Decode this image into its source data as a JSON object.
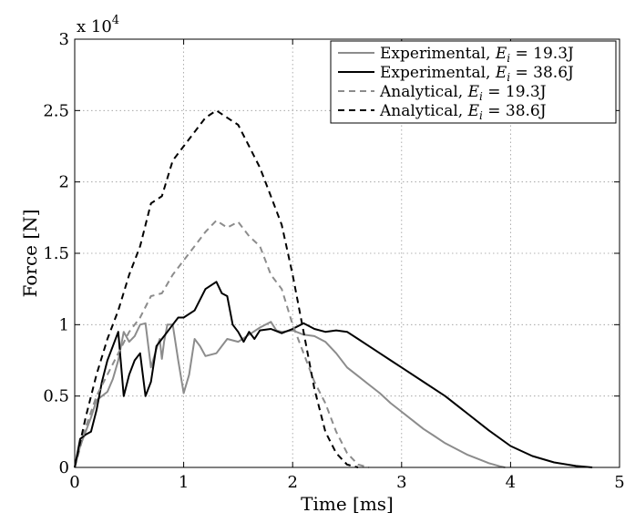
{
  "chart_data": {
    "type": "line",
    "xlabel": "Time [ms]",
    "ylabel": "Force [N]",
    "multiplier_label": "x 10",
    "multiplier_exponent": "4",
    "xlim": [
      0,
      5
    ],
    "ylim": [
      0,
      30000
    ],
    "xticks": [
      0,
      1,
      2,
      3,
      4,
      5
    ],
    "xtick_labels": [
      "0",
      "1",
      "2",
      "3",
      "4",
      "5"
    ],
    "yticks": [
      0,
      5000,
      10000,
      15000,
      20000,
      25000,
      30000
    ],
    "ytick_labels": [
      "0",
      "0.5",
      "1",
      "1.5",
      "2",
      "2.5",
      "3"
    ],
    "grid": true,
    "legend_position": "top-right",
    "series": [
      {
        "name": "Experimental, E_i = 19.3J",
        "legend_prefix": "Experimental, ",
        "legend_suffix": "19.3J",
        "color": "#8c8c8c",
        "dash": "solid",
        "x": [
          0,
          0.05,
          0.1,
          0.15,
          0.2,
          0.25,
          0.3,
          0.35,
          0.4,
          0.45,
          0.5,
          0.55,
          0.6,
          0.65,
          0.7,
          0.75,
          0.78,
          0.8,
          0.82,
          0.85,
          0.9,
          0.95,
          1.0,
          1.05,
          1.1,
          1.15,
          1.2,
          1.3,
          1.4,
          1.5,
          1.6,
          1.7,
          1.8,
          1.85,
          1.9,
          2.0,
          2.1,
          2.2,
          2.3,
          2.4,
          2.5,
          2.6,
          2.7,
          2.8,
          2.9,
          3.0,
          3.1,
          3.2,
          3.3,
          3.4,
          3.5,
          3.6,
          3.7,
          3.8,
          3.9,
          3.95
        ],
        "values": [
          0,
          1500,
          2500,
          3500,
          4700,
          5000,
          5300,
          6200,
          7500,
          9500,
          8800,
          9200,
          10000,
          10100,
          7000,
          8300,
          9000,
          7600,
          8800,
          10000,
          10000,
          7500,
          5200,
          6500,
          9000,
          8500,
          7800,
          8000,
          9000,
          8800,
          9300,
          9800,
          10200,
          9600,
          9500,
          9600,
          9300,
          9200,
          8800,
          8000,
          7000,
          6400,
          5800,
          5200,
          4500,
          3900,
          3300,
          2700,
          2200,
          1700,
          1300,
          900,
          600,
          300,
          80,
          0
        ]
      },
      {
        "name": "Experimental, E_i = 38.6J",
        "legend_prefix": "Experimental, ",
        "legend_suffix": "38.6J",
        "color": "#000000",
        "dash": "solid",
        "x": [
          0,
          0.05,
          0.1,
          0.15,
          0.2,
          0.25,
          0.3,
          0.35,
          0.4,
          0.45,
          0.5,
          0.55,
          0.6,
          0.65,
          0.7,
          0.75,
          0.8,
          0.85,
          0.9,
          0.95,
          1.0,
          1.1,
          1.2,
          1.3,
          1.35,
          1.4,
          1.45,
          1.5,
          1.55,
          1.6,
          1.65,
          1.7,
          1.8,
          1.9,
          2.0,
          2.1,
          2.2,
          2.3,
          2.4,
          2.5,
          2.6,
          2.7,
          2.8,
          2.9,
          3.0,
          3.2,
          3.4,
          3.6,
          3.8,
          4.0,
          4.2,
          4.4,
          4.6,
          4.75
        ],
        "values": [
          0,
          2000,
          2300,
          2500,
          4000,
          6000,
          7500,
          8500,
          9500,
          5000,
          6500,
          7500,
          8000,
          5000,
          6000,
          8500,
          9000,
          9500,
          10000,
          10500,
          10500,
          11000,
          12500,
          13000,
          12200,
          12000,
          10000,
          9500,
          8800,
          9500,
          9000,
          9600,
          9700,
          9400,
          9700,
          10100,
          9700,
          9500,
          9600,
          9500,
          9000,
          8500,
          8000,
          7500,
          7000,
          6000,
          5000,
          3800,
          2600,
          1500,
          800,
          350,
          100,
          0
        ]
      },
      {
        "name": "Analytical, E_i = 19.3J",
        "legend_prefix": "Analytical, ",
        "legend_suffix": "19.3J",
        "color": "#8c8c8c",
        "dash": "dashed",
        "x": [
          0,
          0.1,
          0.2,
          0.3,
          0.4,
          0.5,
          0.6,
          0.7,
          0.8,
          0.9,
          1.0,
          1.1,
          1.2,
          1.3,
          1.4,
          1.5,
          1.6,
          1.7,
          1.8,
          1.9,
          2.0,
          2.1,
          2.2,
          2.3,
          2.4,
          2.5,
          2.6,
          2.7
        ],
        "values": [
          0,
          2800,
          5000,
          6500,
          8000,
          9500,
          10500,
          12000,
          12200,
          13500,
          14500,
          15500,
          16500,
          17300,
          16800,
          17200,
          16200,
          15500,
          13500,
          12500,
          10000,
          8000,
          6000,
          4500,
          2500,
          1000,
          200,
          0
        ]
      },
      {
        "name": "Analytical, E_i = 38.6J",
        "legend_prefix": "Analytical, ",
        "legend_suffix": "38.6J",
        "color": "#000000",
        "dash": "dashed",
        "x": [
          0,
          0.1,
          0.2,
          0.3,
          0.4,
          0.5,
          0.6,
          0.7,
          0.8,
          0.9,
          1.0,
          1.1,
          1.2,
          1.3,
          1.4,
          1.5,
          1.6,
          1.7,
          1.8,
          1.9,
          2.0,
          2.1,
          2.2,
          2.3,
          2.4,
          2.5,
          2.6
        ],
        "values": [
          0,
          3500,
          6500,
          9000,
          11000,
          13500,
          15500,
          18500,
          19000,
          21500,
          22500,
          23500,
          24500,
          25000,
          24500,
          24000,
          22500,
          21000,
          19000,
          17000,
          13500,
          9500,
          5500,
          2500,
          1000,
          200,
          0
        ]
      }
    ]
  }
}
